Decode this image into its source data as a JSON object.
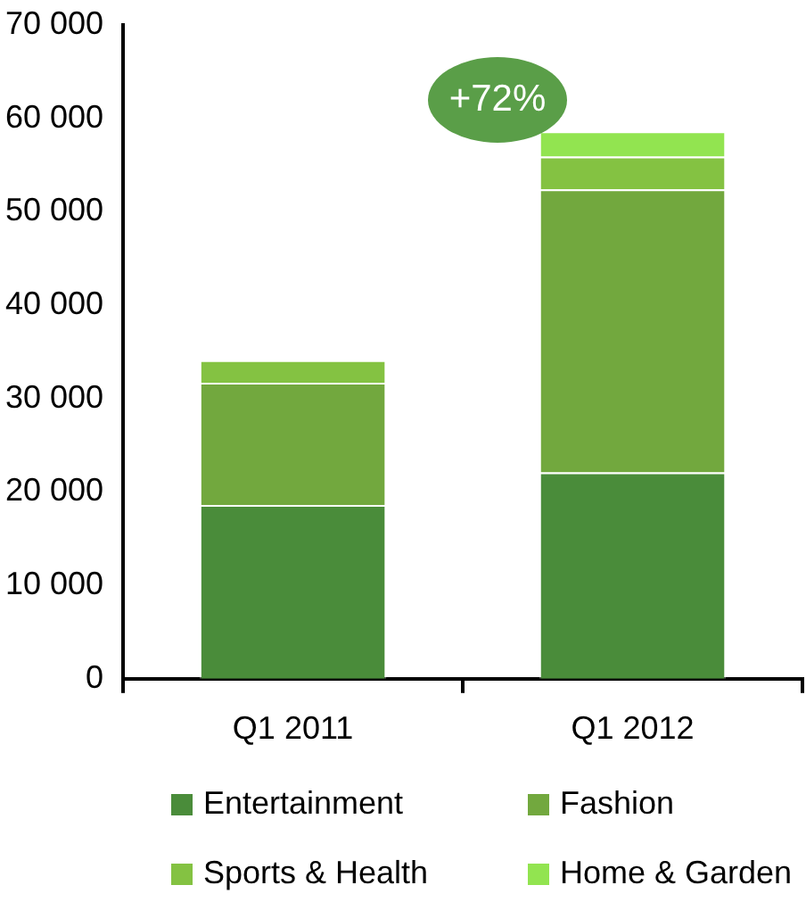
{
  "chart_data": {
    "type": "bar",
    "stacked": true,
    "categories": [
      "Q1 2011",
      "Q1 2012"
    ],
    "series": [
      {
        "name": "Entertainment",
        "color": "#4a8c3a",
        "values": [
          18600,
          22100
        ]
      },
      {
        "name": "Fashion",
        "color": "#72a83e",
        "values": [
          13100,
          30300
        ]
      },
      {
        "name": "Sports & Health",
        "color": "#84c242",
        "values": [
          2400,
          3500
        ]
      },
      {
        "name": "Home & Garden",
        "color": "#92e450",
        "values": [
          0,
          2700
        ]
      }
    ],
    "ylim": [
      0,
      70000
    ],
    "yticks": [
      {
        "value": 0,
        "label": "0"
      },
      {
        "value": 10000,
        "label": "10 000"
      },
      {
        "value": 20000,
        "label": "20 000"
      },
      {
        "value": 30000,
        "label": "30 000"
      },
      {
        "value": 40000,
        "label": "40 000"
      },
      {
        "value": 50000,
        "label": "50 000"
      },
      {
        "value": 60000,
        "label": "60 000"
      },
      {
        "value": 70000,
        "label": "70 000"
      }
    ],
    "grid": false,
    "legend": "bottom",
    "annotations": [
      "+72%"
    ]
  }
}
